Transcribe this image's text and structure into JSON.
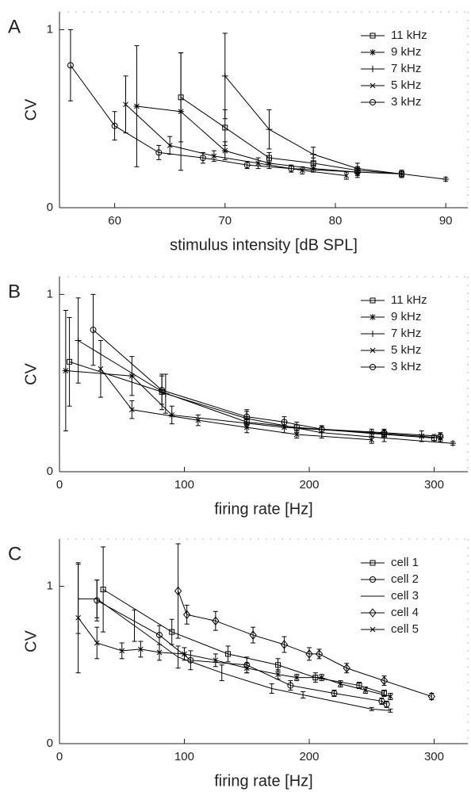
{
  "chart_data": [
    {
      "type": "line",
      "label": "A",
      "xlabel": "stimulus intensity [dB SPL]",
      "ylabel": "CV",
      "xlim": [
        55,
        92
      ],
      "ylim": [
        0,
        1.1
      ],
      "xticks": [
        60,
        70,
        80,
        90
      ],
      "yticks": [
        0,
        1
      ],
      "legend": "upper right",
      "series": [
        {
          "name": "11 kHz",
          "color": "#000000",
          "marker": "square",
          "x": [
            66,
            70,
            74,
            78,
            82,
            86
          ],
          "values": [
            0.62,
            0.45,
            0.28,
            0.25,
            0.21,
            0.19
          ],
          "errors": [
            0.25,
            0.1,
            0.03,
            0.03,
            0.02,
            0.02
          ]
        },
        {
          "name": "9 kHz",
          "color": "#000000",
          "marker": "star",
          "x": [
            62,
            66,
            70,
            74,
            78,
            82,
            86
          ],
          "values": [
            0.57,
            0.54,
            0.32,
            0.25,
            0.22,
            0.2,
            0.19
          ],
          "errors": [
            0.34,
            0.33,
            0.05,
            0.03,
            0.02,
            0.03,
            0.02
          ]
        },
        {
          "name": "7 kHz",
          "color": "#000000",
          "marker": "plus",
          "x": [
            70,
            74,
            78,
            82,
            86,
            90
          ],
          "values": [
            0.74,
            0.44,
            0.3,
            0.22,
            0.19,
            0.16
          ],
          "errors": [
            0.24,
            0.11,
            0.04,
            0.03,
            0.02,
            0.01
          ]
        },
        {
          "name": "5 kHz",
          "color": "#000000",
          "marker": "cross",
          "x": [
            61,
            65,
            69,
            73,
            77,
            81
          ],
          "values": [
            0.58,
            0.35,
            0.29,
            0.25,
            0.21,
            0.18
          ],
          "errors": [
            0.16,
            0.05,
            0.03,
            0.03,
            0.02,
            0.02
          ]
        },
        {
          "name": "3 kHz",
          "color": "#000000",
          "marker": "circle",
          "x": [
            56,
            60,
            64,
            68,
            72,
            76,
            82
          ],
          "values": [
            0.8,
            0.46,
            0.31,
            0.28,
            0.24,
            0.22,
            0.2
          ],
          "errors": [
            0.2,
            0.08,
            0.04,
            0.03,
            0.02,
            0.02,
            0.02
          ]
        }
      ]
    },
    {
      "type": "line",
      "label": "B",
      "xlabel": "firing rate [Hz]",
      "ylabel": "CV",
      "xlim": [
        0,
        327
      ],
      "ylim": [
        0,
        1.1
      ],
      "xticks": [
        0,
        100,
        200,
        300
      ],
      "yticks": [
        0,
        1
      ],
      "legend": "upper right",
      "series": [
        {
          "name": "11 kHz",
          "color": "#000000",
          "marker": "square",
          "x": [
            8,
            82,
            150,
            190,
            260,
            300
          ],
          "values": [
            0.62,
            0.45,
            0.28,
            0.25,
            0.21,
            0.19
          ],
          "errors": [
            0.25,
            0.1,
            0.03,
            0.03,
            0.02,
            0.02
          ]
        },
        {
          "name": "9 kHz",
          "color": "#000000",
          "marker": "star",
          "x": [
            5,
            58,
            90,
            180,
            250,
            290,
            305
          ],
          "values": [
            0.57,
            0.54,
            0.32,
            0.25,
            0.22,
            0.2,
            0.19
          ],
          "errors": [
            0.34,
            0.11,
            0.05,
            0.03,
            0.02,
            0.03,
            0.02
          ]
        },
        {
          "name": "7 kHz",
          "color": "#000000",
          "marker": "plus",
          "x": [
            15,
            85,
            150,
            210,
            260,
            315
          ],
          "values": [
            0.74,
            0.44,
            0.3,
            0.22,
            0.19,
            0.16
          ],
          "errors": [
            0.24,
            0.11,
            0.04,
            0.03,
            0.02,
            0.01
          ]
        },
        {
          "name": "5 kHz",
          "color": "#000000",
          "marker": "cross",
          "x": [
            33,
            58,
            111,
            150,
            190,
            250
          ],
          "values": [
            0.58,
            0.35,
            0.29,
            0.25,
            0.21,
            0.18
          ],
          "errors": [
            0.16,
            0.05,
            0.03,
            0.03,
            0.02,
            0.02
          ]
        },
        {
          "name": "3 kHz",
          "color": "#000000",
          "marker": "circle",
          "x": [
            27,
            82,
            150,
            180,
            210,
            260,
            305
          ],
          "values": [
            0.8,
            0.46,
            0.31,
            0.28,
            0.24,
            0.22,
            0.2
          ],
          "errors": [
            0.2,
            0.08,
            0.04,
            0.03,
            0.02,
            0.02,
            0.02
          ]
        }
      ]
    },
    {
      "type": "line",
      "label": "C",
      "xlabel": "firing rate [Hz]",
      "ylabel": "CV",
      "xlim": [
        0,
        327
      ],
      "ylim": [
        0,
        1.3
      ],
      "xticks": [
        0,
        100,
        200,
        300
      ],
      "yticks": [
        0,
        1
      ],
      "legend": "upper right",
      "series": [
        {
          "name": "cell 1",
          "color": "#000000",
          "marker": "square",
          "x": [
            35,
            90,
            135,
            175,
            205,
            240,
            260
          ],
          "values": [
            0.98,
            0.71,
            0.57,
            0.5,
            0.42,
            0.37,
            0.32
          ],
          "errors": [
            0.27,
            0.08,
            0.05,
            0.04,
            0.03,
            0.02,
            0.02
          ]
        },
        {
          "name": "cell 2",
          "color": "#000000",
          "marker": "circle",
          "x": [
            30,
            80,
            105,
            150,
            185,
            220,
            258,
            262
          ],
          "values": [
            0.91,
            0.69,
            0.53,
            0.5,
            0.37,
            0.32,
            0.27,
            0.25
          ],
          "errors": [
            0.13,
            0.06,
            0.06,
            0.05,
            0.03,
            0.02,
            0.02,
            0.02
          ]
        },
        {
          "name": "cell 3",
          "color": "#000000",
          "marker": "none",
          "x": [
            15,
            30,
            60,
            95,
            130,
            170,
            195,
            250,
            265
          ],
          "values": [
            0.92,
            0.92,
            0.75,
            0.55,
            0.45,
            0.35,
            0.31,
            0.22,
            0.21
          ],
          "errors": [
            0.22,
            0.12,
            0.1,
            0.07,
            0.05,
            0.03,
            0.02,
            0.01,
            0.01
          ]
        },
        {
          "name": "cell 4",
          "color": "#000000",
          "marker": "diamond",
          "x": [
            95,
            102,
            125,
            155,
            180,
            200,
            208,
            230,
            260,
            298
          ],
          "values": [
            0.97,
            0.82,
            0.78,
            0.69,
            0.63,
            0.57,
            0.57,
            0.48,
            0.4,
            0.3
          ],
          "errors": [
            0.3,
            0.06,
            0.06,
            0.05,
            0.05,
            0.04,
            0.03,
            0.03,
            0.03,
            0.02
          ]
        },
        {
          "name": "cell 5",
          "color": "#000000",
          "marker": "cross",
          "x": [
            15,
            30,
            50,
            65,
            80,
            100,
            125,
            150,
            175,
            190,
            210,
            225,
            245,
            265
          ],
          "values": [
            0.8,
            0.64,
            0.59,
            0.6,
            0.58,
            0.57,
            0.53,
            0.48,
            0.44,
            0.42,
            0.42,
            0.38,
            0.34,
            0.3
          ],
          "errors": [
            0.35,
            0.1,
            0.05,
            0.05,
            0.05,
            0.04,
            0.04,
            0.03,
            0.03,
            0.02,
            0.02,
            0.02,
            0.02,
            0.02
          ]
        }
      ]
    }
  ]
}
